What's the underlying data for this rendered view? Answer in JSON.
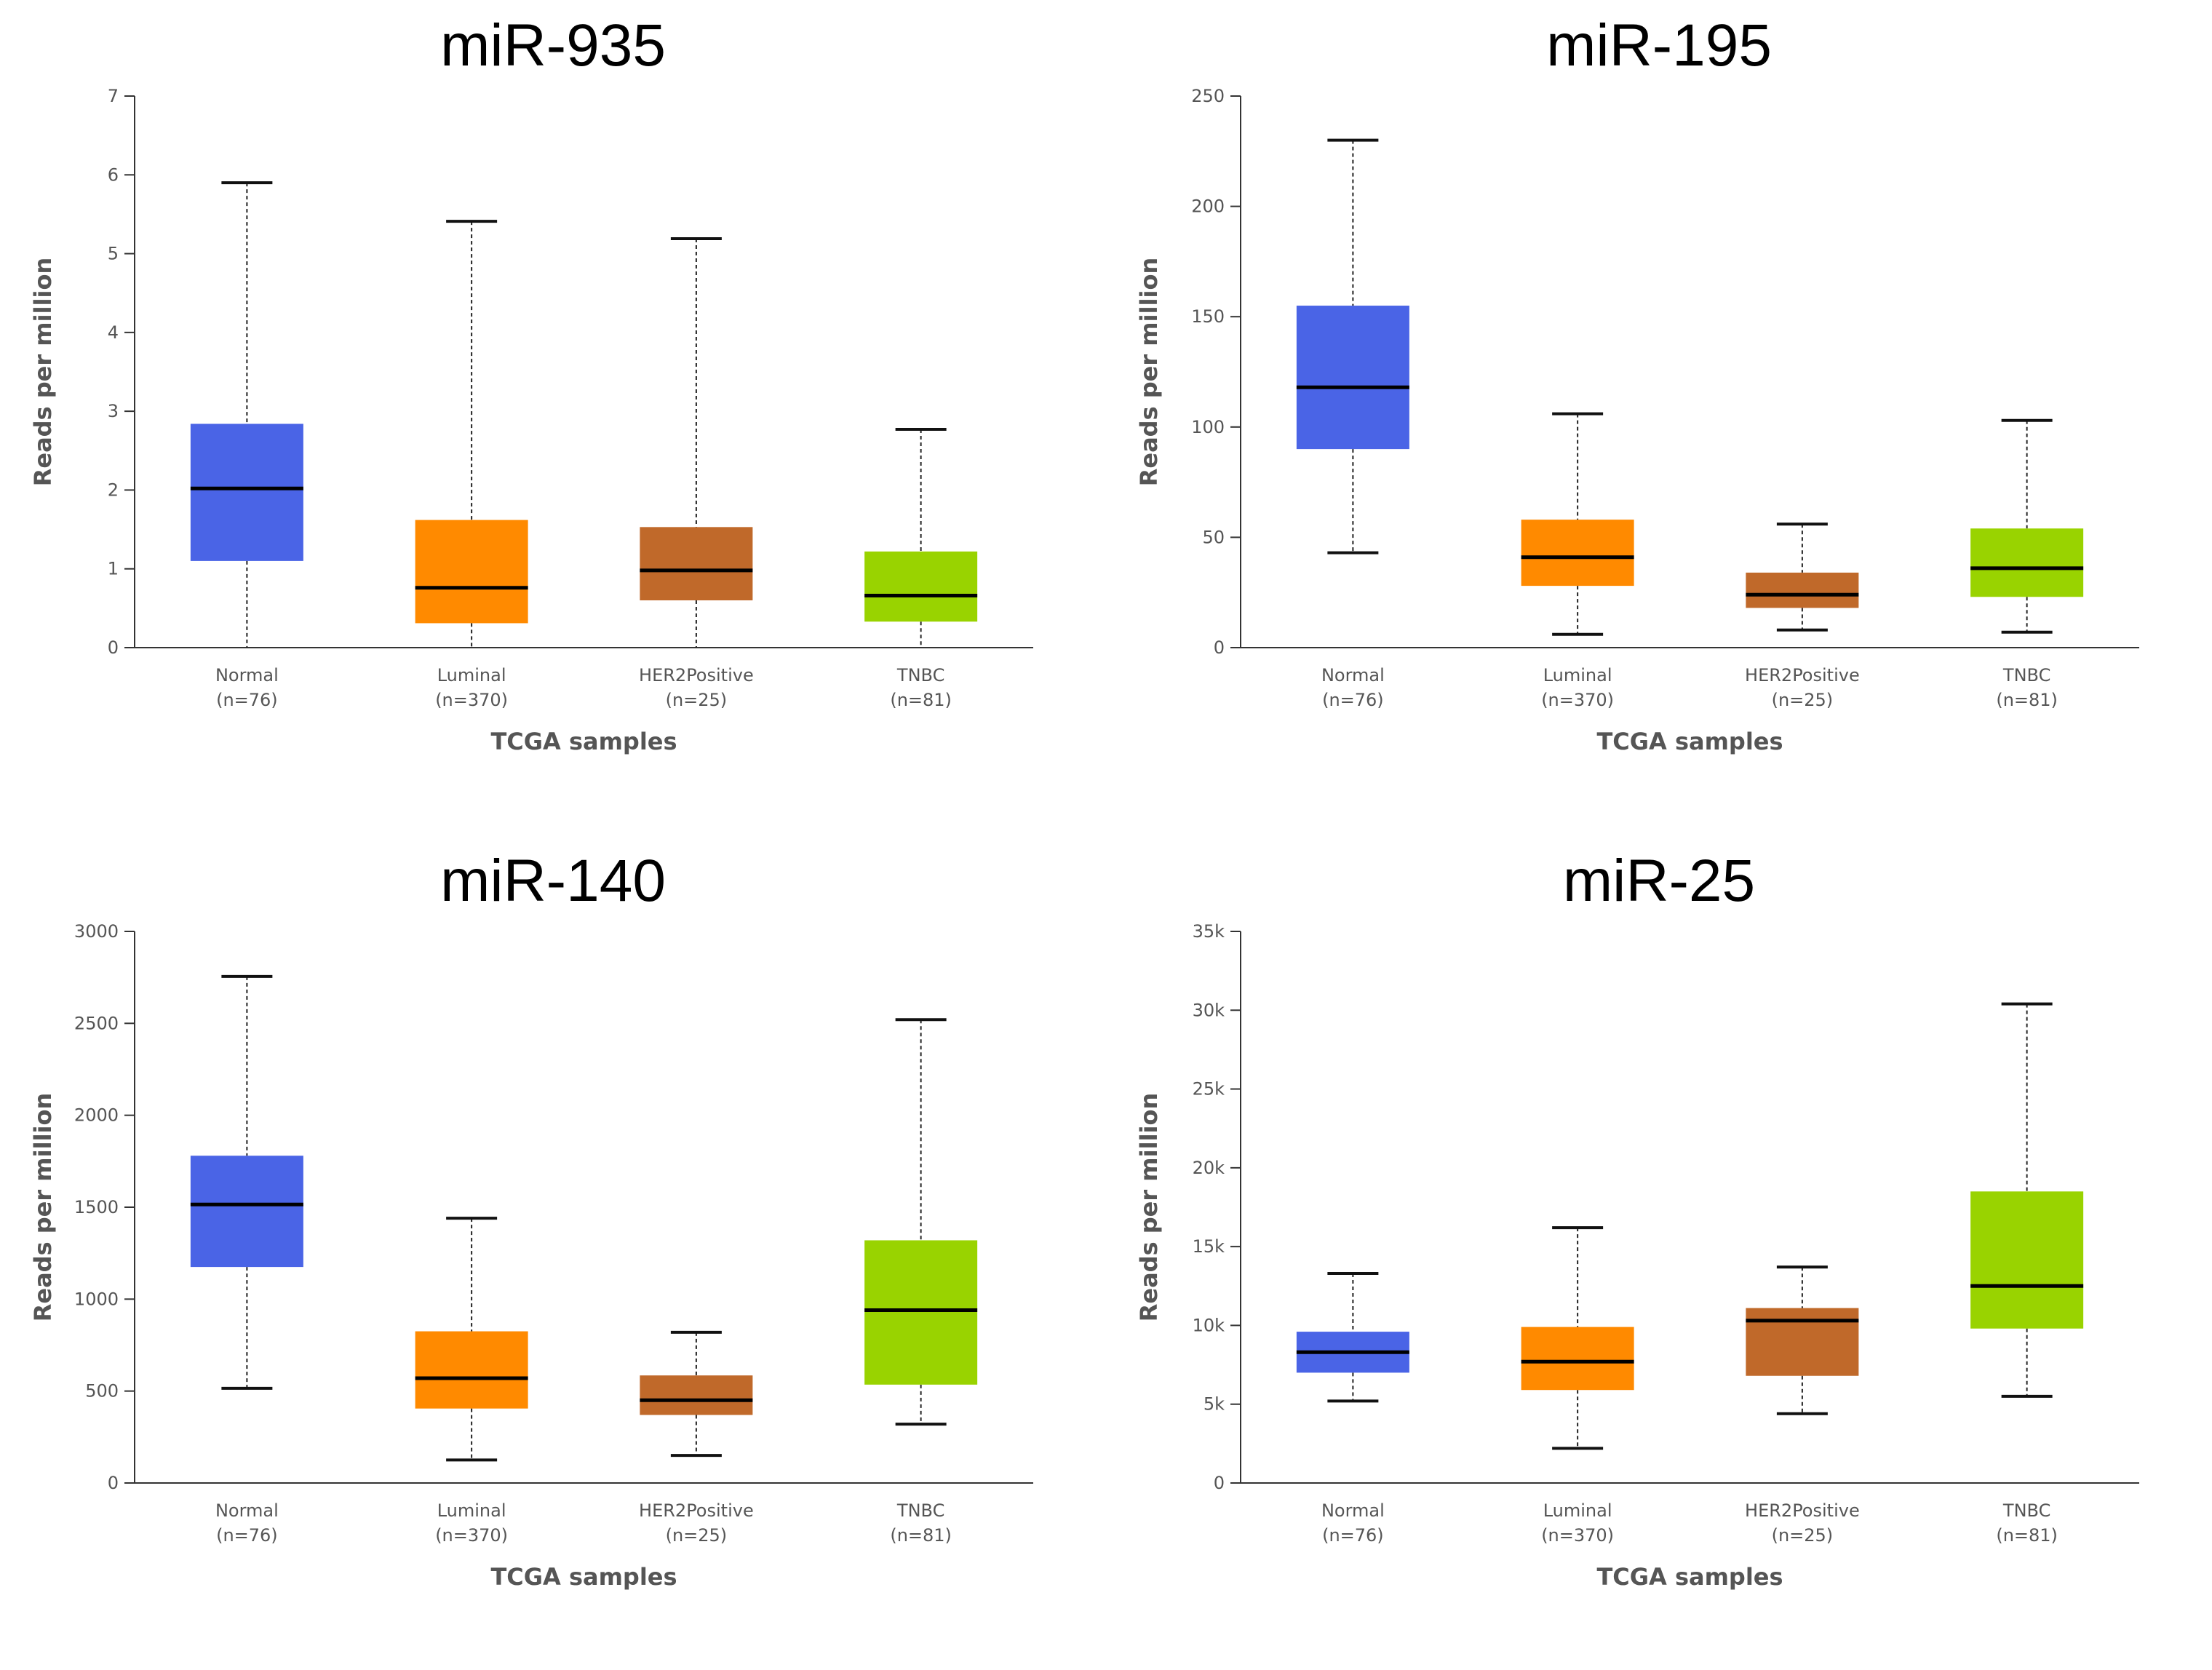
{
  "chart_data": [
    {
      "type": "box",
      "title": "miR-935",
      "xlabel": "TCGA samples",
      "ylabel": "Reads per million",
      "ylim": [
        0,
        7
      ],
      "yticks": [
        0,
        1,
        2,
        3,
        4,
        5,
        6,
        7
      ],
      "ytick_labels": [
        "0",
        "1",
        "2",
        "3",
        "4",
        "5",
        "6",
        "7"
      ],
      "categories": [
        "Normal",
        "Luminal",
        "HER2Positive",
        "TNBC"
      ],
      "sample_counts": [
        "(n=76)",
        "(n=370)",
        "(n=25)",
        "(n=81)"
      ],
      "colors": [
        "#4a64e6",
        "#ff8a00",
        "#c0692a",
        "#99d300"
      ],
      "boxes": [
        {
          "min": 0,
          "q1": 1.1,
          "median": 2.02,
          "q3": 2.84,
          "max": 5.9
        },
        {
          "min": 0,
          "q1": 0.31,
          "median": 0.76,
          "q3": 1.62,
          "max": 5.41
        },
        {
          "min": 0,
          "q1": 0.6,
          "median": 0.98,
          "q3": 1.53,
          "max": 5.19
        },
        {
          "min": 0,
          "q1": 0.33,
          "median": 0.66,
          "q3": 1.22,
          "max": 2.77
        }
      ]
    },
    {
      "type": "box",
      "title": "miR-195",
      "xlabel": "TCGA samples",
      "ylabel": "Reads per million",
      "ylim": [
        0,
        250
      ],
      "yticks": [
        0,
        50,
        100,
        150,
        200,
        250
      ],
      "ytick_labels": [
        "0",
        "50",
        "100",
        "150",
        "200",
        "250"
      ],
      "categories": [
        "Normal",
        "Luminal",
        "HER2Positive",
        "TNBC"
      ],
      "sample_counts": [
        "(n=76)",
        "(n=370)",
        "(n=25)",
        "(n=81)"
      ],
      "colors": [
        "#4a64e6",
        "#ff8a00",
        "#c0692a",
        "#99d300"
      ],
      "boxes": [
        {
          "min": 43,
          "q1": 90,
          "median": 118,
          "q3": 155,
          "max": 230
        },
        {
          "min": 6,
          "q1": 28,
          "median": 41,
          "q3": 58,
          "max": 106
        },
        {
          "min": 8,
          "q1": 18,
          "median": 24,
          "q3": 34,
          "max": 56
        },
        {
          "min": 7,
          "q1": 23,
          "median": 36,
          "q3": 54,
          "max": 103
        }
      ]
    },
    {
      "type": "box",
      "title": "miR-140",
      "xlabel": "TCGA samples",
      "ylabel": "Reads per million",
      "ylim": [
        0,
        3000
      ],
      "yticks": [
        0,
        500,
        1000,
        1500,
        2000,
        2500,
        3000
      ],
      "ytick_labels": [
        "0",
        "500",
        "1000",
        "1500",
        "2000",
        "2500",
        "3000"
      ],
      "categories": [
        "Normal",
        "Luminal",
        "HER2Positive",
        "TNBC"
      ],
      "sample_counts": [
        "(n=76)",
        "(n=370)",
        "(n=25)",
        "(n=81)"
      ],
      "colors": [
        "#4a64e6",
        "#ff8a00",
        "#c0692a",
        "#99d300"
      ],
      "boxes": [
        {
          "min": 515,
          "q1": 1175,
          "median": 1515,
          "q3": 1780,
          "max": 2755
        },
        {
          "min": 125,
          "q1": 405,
          "median": 570,
          "q3": 825,
          "max": 1440
        },
        {
          "min": 150,
          "q1": 370,
          "median": 450,
          "q3": 585,
          "max": 820
        },
        {
          "min": 320,
          "q1": 535,
          "median": 940,
          "q3": 1320,
          "max": 2520
        }
      ]
    },
    {
      "type": "box",
      "title": "miR-25",
      "xlabel": "TCGA samples",
      "ylabel": "Reads per million",
      "ylim": [
        0,
        35000
      ],
      "yticks": [
        0,
        5000,
        10000,
        15000,
        20000,
        25000,
        30000,
        35000
      ],
      "ytick_labels": [
        "0",
        "5k",
        "10k",
        "15k",
        "20k",
        "25k",
        "30k",
        "35k"
      ],
      "categories": [
        "Normal",
        "Luminal",
        "HER2Positive",
        "TNBC"
      ],
      "sample_counts": [
        "(n=76)",
        "(n=370)",
        "(n=25)",
        "(n=81)"
      ],
      "colors": [
        "#4a64e6",
        "#ff8a00",
        "#c0692a",
        "#99d300"
      ],
      "boxes": [
        {
          "min": 5200,
          "q1": 7000,
          "median": 8300,
          "q3": 9600,
          "max": 13300
        },
        {
          "min": 2200,
          "q1": 5900,
          "median": 7700,
          "q3": 9900,
          "max": 16200
        },
        {
          "min": 4400,
          "q1": 6800,
          "median": 10300,
          "q3": 11100,
          "max": 13700
        },
        {
          "min": 5500,
          "q1": 9800,
          "median": 12500,
          "q3": 18500,
          "max": 30400
        }
      ]
    }
  ]
}
